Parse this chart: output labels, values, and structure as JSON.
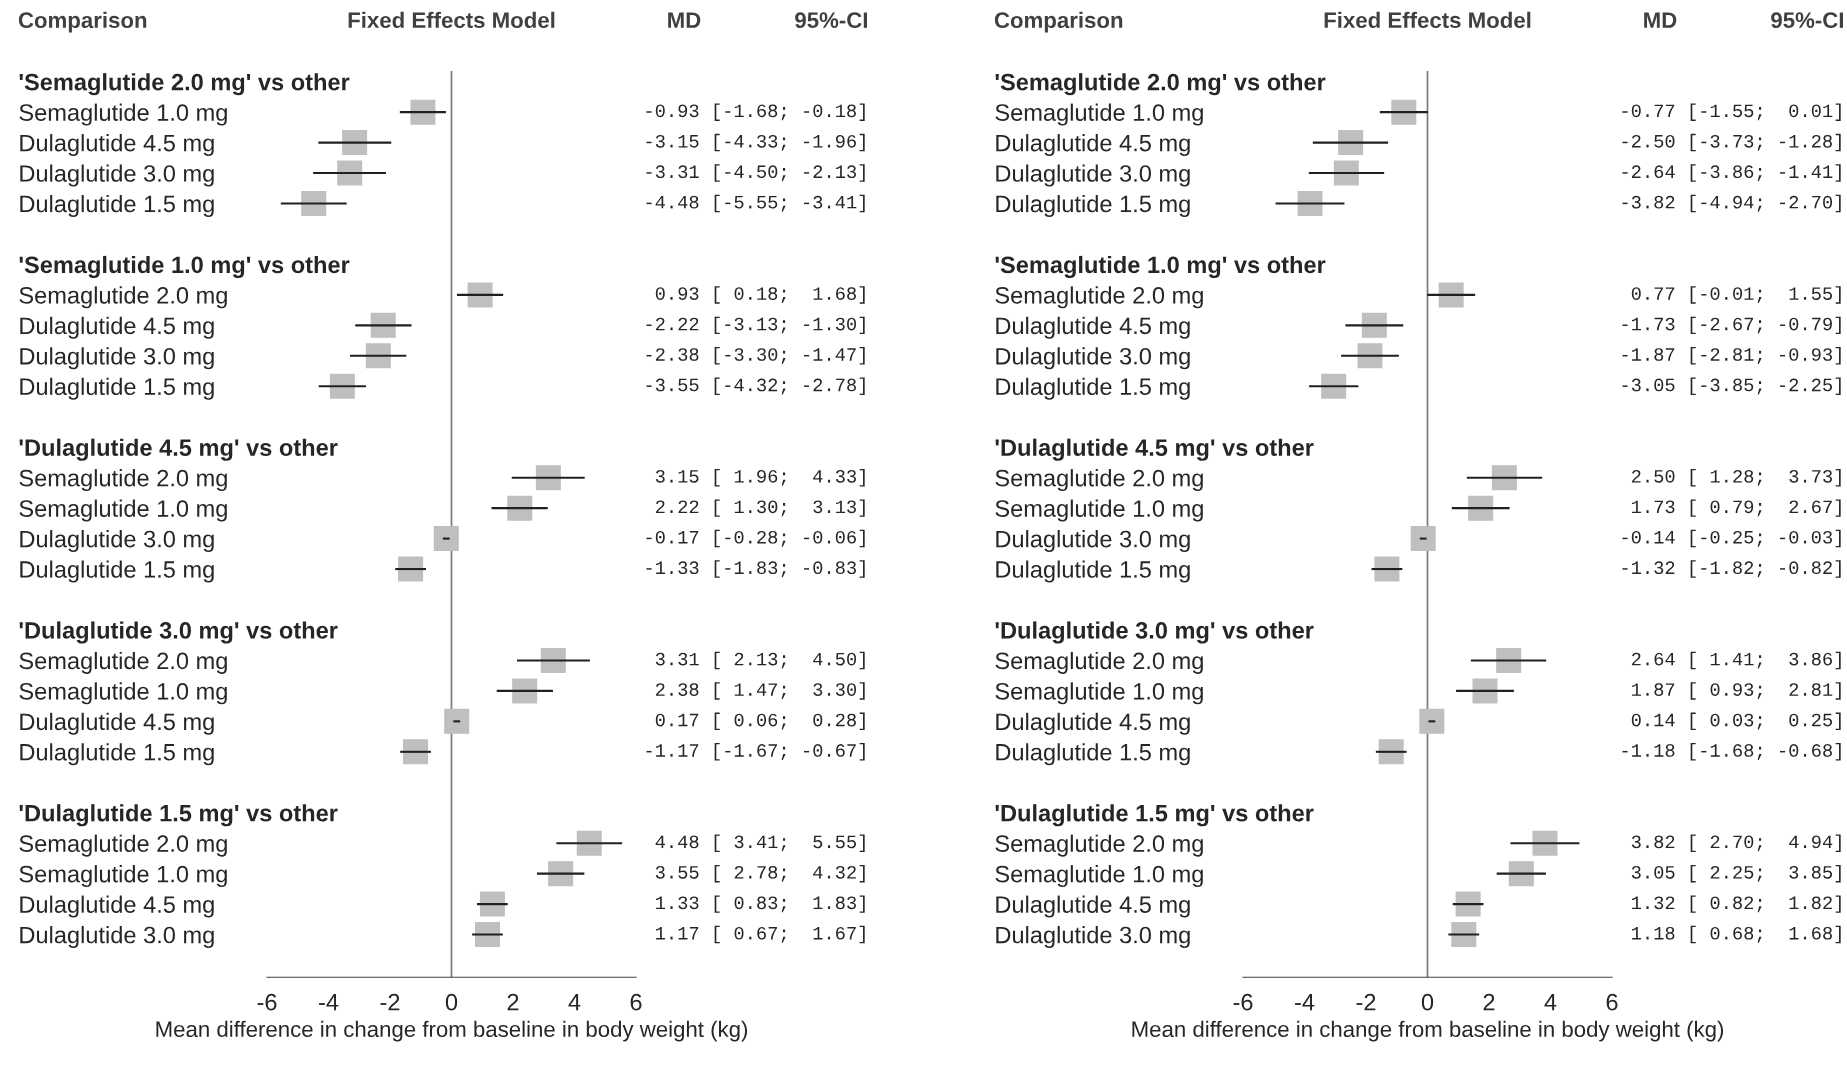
{
  "chart_data": [
    {
      "type": "scatter",
      "orientation": "horizontal",
      "xlabel": "Mean difference in change from baseline in body weight (kg)",
      "annotations": [
        "Comparison",
        "Fixed Effects Model",
        "MD",
        "95%-CI"
      ],
      "categories": [
        "'Semaglutide 2.0 mg' vs other",
        "Semaglutide 1.0 mg",
        "Dulaglutide 4.5 mg",
        "Dulaglutide 3.0 mg",
        "Dulaglutide 1.5 mg",
        null,
        "'Semaglutide 1.0 mg' vs other",
        "Semaglutide 2.0 mg",
        "Dulaglutide 4.5 mg",
        "Dulaglutide 3.0 mg",
        "Dulaglutide 1.5 mg",
        null,
        "'Dulaglutide 4.5 mg' vs other",
        "Semaglutide 2.0 mg",
        "Semaglutide 1.0 mg",
        "Dulaglutide 3.0 mg",
        "Dulaglutide 1.5 mg",
        null,
        "'Dulaglutide 3.0 mg' vs other",
        "Semaglutide 2.0 mg",
        "Semaglutide 1.0 mg",
        "Dulaglutide 4.5 mg",
        "Dulaglutide 1.5 mg",
        null,
        "'Dulaglutide 1.5 mg' vs other",
        "Semaglutide 2.0 mg",
        "Semaglutide 1.0 mg",
        "Dulaglutide 4.5 mg",
        "Dulaglutide 3.0 mg"
      ],
      "values": [
        null,
        -0.93,
        -3.15,
        -3.31,
        -4.48,
        null,
        null,
        0.93,
        -2.22,
        -2.38,
        -3.55,
        null,
        null,
        3.15,
        2.22,
        -0.17,
        -1.33,
        null,
        null,
        3.31,
        2.38,
        0.17,
        -1.17,
        null,
        null,
        4.48,
        3.55,
        1.33,
        1.17
      ],
      "errors": [
        null,
        [
          -1.68,
          -0.18
        ],
        [
          -4.33,
          -1.96
        ],
        [
          -4.5,
          -2.13
        ],
        [
          -5.55,
          -3.41
        ],
        null,
        null,
        [
          0.18,
          1.68
        ],
        [
          -3.13,
          -1.3
        ],
        [
          -3.3,
          -1.47
        ],
        [
          -4.32,
          -2.78
        ],
        null,
        null,
        [
          1.96,
          4.33
        ],
        [
          1.3,
          3.13
        ],
        [
          -0.28,
          -0.06
        ],
        [
          -1.83,
          -0.83
        ],
        null,
        null,
        [
          2.13,
          4.5
        ],
        [
          1.47,
          3.3
        ],
        [
          0.06,
          0.28
        ],
        [
          -1.67,
          -0.67
        ],
        null,
        null,
        [
          3.41,
          5.55
        ],
        [
          2.78,
          4.32
        ],
        [
          0.83,
          1.83
        ],
        [
          0.67,
          1.67
        ]
      ],
      "value_labels": [
        null,
        "-0.93 [-1.68; -0.18]",
        "-3.15 [-4.33; -1.96]",
        "-3.31 [-4.50; -2.13]",
        "-4.48 [-5.55; -3.41]",
        null,
        null,
        " 0.93 [ 0.18;  1.68]",
        "-2.22 [-3.13; -1.30]",
        "-2.38 [-3.30; -1.47]",
        "-3.55 [-4.32; -2.78]",
        null,
        null,
        " 3.15 [ 1.96;  4.33]",
        " 2.22 [ 1.30;  3.13]",
        "-0.17 [-0.28; -0.06]",
        "-1.33 [-1.83; -0.83]",
        null,
        null,
        " 3.31 [ 2.13;  4.50]",
        " 2.38 [ 1.47;  3.30]",
        " 0.17 [ 0.06;  0.28]",
        "-1.17 [-1.67; -0.67]",
        null,
        null,
        " 4.48 [ 3.41;  5.55]",
        " 3.55 [ 2.78;  4.32]",
        " 1.33 [ 0.83;  1.83]",
        " 1.17 [ 0.67;  1.67]"
      ],
      "color": "#bfbfbf",
      "marker": "square",
      "xlim": [
        -6,
        6
      ],
      "xticks": [
        -6,
        -4,
        -2,
        0,
        2,
        4,
        6
      ],
      "tick_labels": "x",
      "grid": false,
      "legend": false,
      "ref_lines": [
        {
          "axis": "x",
          "value": 0,
          "color": "#808080"
        }
      ]
    },
    {
      "type": "scatter",
      "orientation": "horizontal",
      "xlabel": "Mean difference in change from baseline in body weight (kg)",
      "annotations": [
        "Comparison",
        "Fixed Effects Model",
        "MD",
        "95%-CI"
      ],
      "categories": [
        "'Semaglutide 2.0 mg' vs other",
        "Semaglutide 1.0 mg",
        "Dulaglutide 4.5 mg",
        "Dulaglutide 3.0 mg",
        "Dulaglutide 1.5 mg",
        null,
        "'Semaglutide 1.0 mg' vs other",
        "Semaglutide 2.0 mg",
        "Dulaglutide 4.5 mg",
        "Dulaglutide 3.0 mg",
        "Dulaglutide 1.5 mg",
        null,
        "'Dulaglutide 4.5 mg' vs other",
        "Semaglutide 2.0 mg",
        "Semaglutide 1.0 mg",
        "Dulaglutide 3.0 mg",
        "Dulaglutide 1.5 mg",
        null,
        "'Dulaglutide 3.0 mg' vs other",
        "Semaglutide 2.0 mg",
        "Semaglutide 1.0 mg",
        "Dulaglutide 4.5 mg",
        "Dulaglutide 1.5 mg",
        null,
        "'Dulaglutide 1.5 mg' vs other",
        "Semaglutide 2.0 mg",
        "Semaglutide 1.0 mg",
        "Dulaglutide 4.5 mg",
        "Dulaglutide 3.0 mg"
      ],
      "values": [
        null,
        -0.77,
        -2.5,
        -2.64,
        -3.82,
        null,
        null,
        0.77,
        -1.73,
        -1.87,
        -3.05,
        null,
        null,
        2.5,
        1.73,
        -0.14,
        -1.32,
        null,
        null,
        2.64,
        1.87,
        0.14,
        -1.18,
        null,
        null,
        3.82,
        3.05,
        1.32,
        1.18
      ],
      "errors": [
        null,
        [
          -1.55,
          0.01
        ],
        [
          -3.73,
          -1.28
        ],
        [
          -3.86,
          -1.41
        ],
        [
          -4.94,
          -2.7
        ],
        null,
        null,
        [
          -0.01,
          1.55
        ],
        [
          -2.67,
          -0.79
        ],
        [
          -2.81,
          -0.93
        ],
        [
          -3.85,
          -2.25
        ],
        null,
        null,
        [
          1.28,
          3.73
        ],
        [
          0.79,
          2.67
        ],
        [
          -0.25,
          -0.03
        ],
        [
          -1.82,
          -0.82
        ],
        null,
        null,
        [
          1.41,
          3.86
        ],
        [
          0.93,
          2.81
        ],
        [
          0.03,
          0.25
        ],
        [
          -1.68,
          -0.68
        ],
        null,
        null,
        [
          2.7,
          4.94
        ],
        [
          2.25,
          3.85
        ],
        [
          0.82,
          1.82
        ],
        [
          0.68,
          1.68
        ]
      ],
      "value_labels": [
        null,
        "-0.77 [-1.55;  0.01]",
        "-2.50 [-3.73; -1.28]",
        "-2.64 [-3.86; -1.41]",
        "-3.82 [-4.94; -2.70]",
        null,
        null,
        " 0.77 [-0.01;  1.55]",
        "-1.73 [-2.67; -0.79]",
        "-1.87 [-2.81; -0.93]",
        "-3.05 [-3.85; -2.25]",
        null,
        null,
        " 2.50 [ 1.28;  3.73]",
        " 1.73 [ 0.79;  2.67]",
        "-0.14 [-0.25; -0.03]",
        "-1.32 [-1.82; -0.82]",
        null,
        null,
        " 2.64 [ 1.41;  3.86]",
        " 1.87 [ 0.93;  2.81]",
        " 0.14 [ 0.03;  0.25]",
        "-1.18 [-1.68; -0.68]",
        null,
        null,
        " 3.82 [ 2.70;  4.94]",
        " 3.05 [ 2.25;  3.85]",
        " 1.32 [ 0.82;  1.82]",
        " 1.18 [ 0.68;  1.68]"
      ],
      "color": "#bfbfbf",
      "marker": "square",
      "xlim": [
        -6,
        6
      ],
      "xticks": [
        -6,
        -4,
        -2,
        0,
        2,
        4,
        6
      ],
      "tick_labels": "x",
      "grid": false,
      "legend": false,
      "ref_lines": [
        {
          "axis": "x",
          "value": 0,
          "color": "#808080"
        }
      ]
    }
  ]
}
